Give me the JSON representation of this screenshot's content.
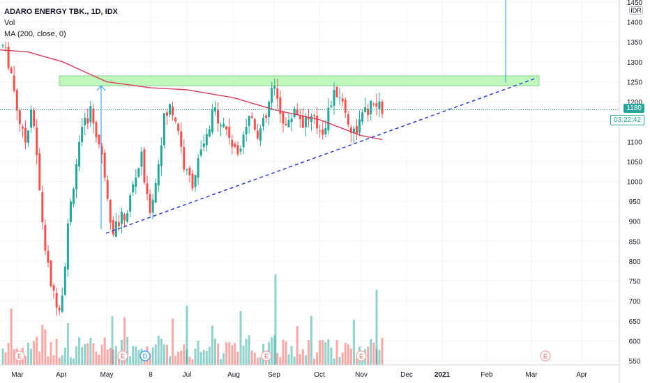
{
  "legend": {
    "symbol": "ADARO ENERGY TBK., 1D, IDX",
    "volume": "Vol",
    "ma": "MA (200, close, 0)"
  },
  "currency": "IDR",
  "price_badge": "1180",
  "countdown_badge": "03:22:42",
  "colors": {
    "up": "#26a69a",
    "down": "#ef5350",
    "ma": "#d93b5c",
    "trendline": "#2c3ad4",
    "resistance_fill": "#95f58f",
    "resistance_border": "#4caf50",
    "arrow": "#2196f3",
    "price_line": "#26a69a"
  },
  "chart_data": {
    "type": "candlestick",
    "title": "ADARO ENERGY TBK., 1D, IDX",
    "y_axis_ticks": [
      1450,
      1400,
      1350,
      1300,
      1250,
      1200,
      1150,
      1100,
      1050,
      1000,
      950,
      900,
      850,
      800,
      750,
      700,
      650,
      600,
      550
    ],
    "x_axis_labels": [
      "Mar",
      "Apr",
      "May",
      "8",
      "Jul",
      "Aug",
      "Sep",
      "Oct",
      "Nov",
      "Dec",
      "2021",
      "Feb",
      "Mar",
      "Apr"
    ],
    "ylim": [
      540,
      1470
    ],
    "last_price": 1180,
    "ohlc_path": [
      [
        "Mar",
        1340
      ],
      [
        "Mar",
        1290
      ],
      [
        "Mar",
        1180
      ],
      [
        "Mar",
        1090
      ],
      [
        "Mar",
        1200
      ],
      [
        "Apr",
        980
      ],
      [
        "Apr",
        800
      ],
      [
        "Apr",
        710
      ],
      [
        "Apr",
        690
      ],
      [
        "Apr",
        900
      ],
      [
        "Apr",
        1040
      ],
      [
        "Apr",
        1130
      ],
      [
        "Apr",
        1180
      ],
      [
        "Apr",
        1110
      ],
      [
        "Apr",
        1020
      ],
      [
        "May",
        880
      ],
      [
        "May",
        900
      ],
      [
        "May",
        920
      ],
      [
        "May",
        1000
      ],
      [
        "May",
        1060
      ],
      [
        "May",
        920
      ],
      [
        "May",
        1000
      ],
      [
        "May",
        1150
      ],
      [
        "May",
        1190
      ],
      [
        "May",
        1140
      ],
      [
        "Jul",
        1020
      ],
      [
        "Jul",
        1000
      ],
      [
        "Jul",
        1060
      ],
      [
        "Jul",
        1110
      ],
      [
        "Jul",
        1180
      ],
      [
        "Jul",
        1150
      ],
      [
        "Jul",
        1120
      ],
      [
        "Aug",
        1060
      ],
      [
        "Aug",
        1130
      ],
      [
        "Aug",
        1170
      ],
      [
        "Aug",
        1120
      ],
      [
        "Aug",
        1150
      ],
      [
        "Sep",
        1240
      ],
      [
        "Sep",
        1180
      ],
      [
        "Sep",
        1130
      ],
      [
        "Sep",
        1190
      ],
      [
        "Sep",
        1150
      ],
      [
        "Oct",
        1160
      ],
      [
        "Oct",
        1140
      ],
      [
        "Oct",
        1130
      ],
      [
        "Oct",
        1200
      ],
      [
        "Oct",
        1230
      ],
      [
        "Oct",
        1170
      ],
      [
        "Nov",
        1120
      ],
      [
        "Nov",
        1150
      ],
      [
        "Nov",
        1180
      ],
      [
        "Nov",
        1190
      ],
      [
        "Nov",
        1180
      ]
    ],
    "moving_average": {
      "name": "MA (200, close, 0)",
      "points": [
        [
          "Mar",
          1330
        ],
        [
          "Apr",
          1300
        ],
        [
          "May",
          1250
        ],
        [
          "Jul",
          1220
        ],
        [
          "Aug",
          1200
        ],
        [
          "Sep",
          1170
        ],
        [
          "Oct",
          1140
        ],
        [
          "Nov",
          1105
        ]
      ]
    },
    "resistance_zone": [
      1240,
      1265
    ],
    "support_trendline": [
      [
        "May",
        870
      ],
      [
        "Mar",
        1260
      ]
    ],
    "events": [
      "E",
      "E",
      "D",
      "E",
      "E",
      "E"
    ]
  }
}
